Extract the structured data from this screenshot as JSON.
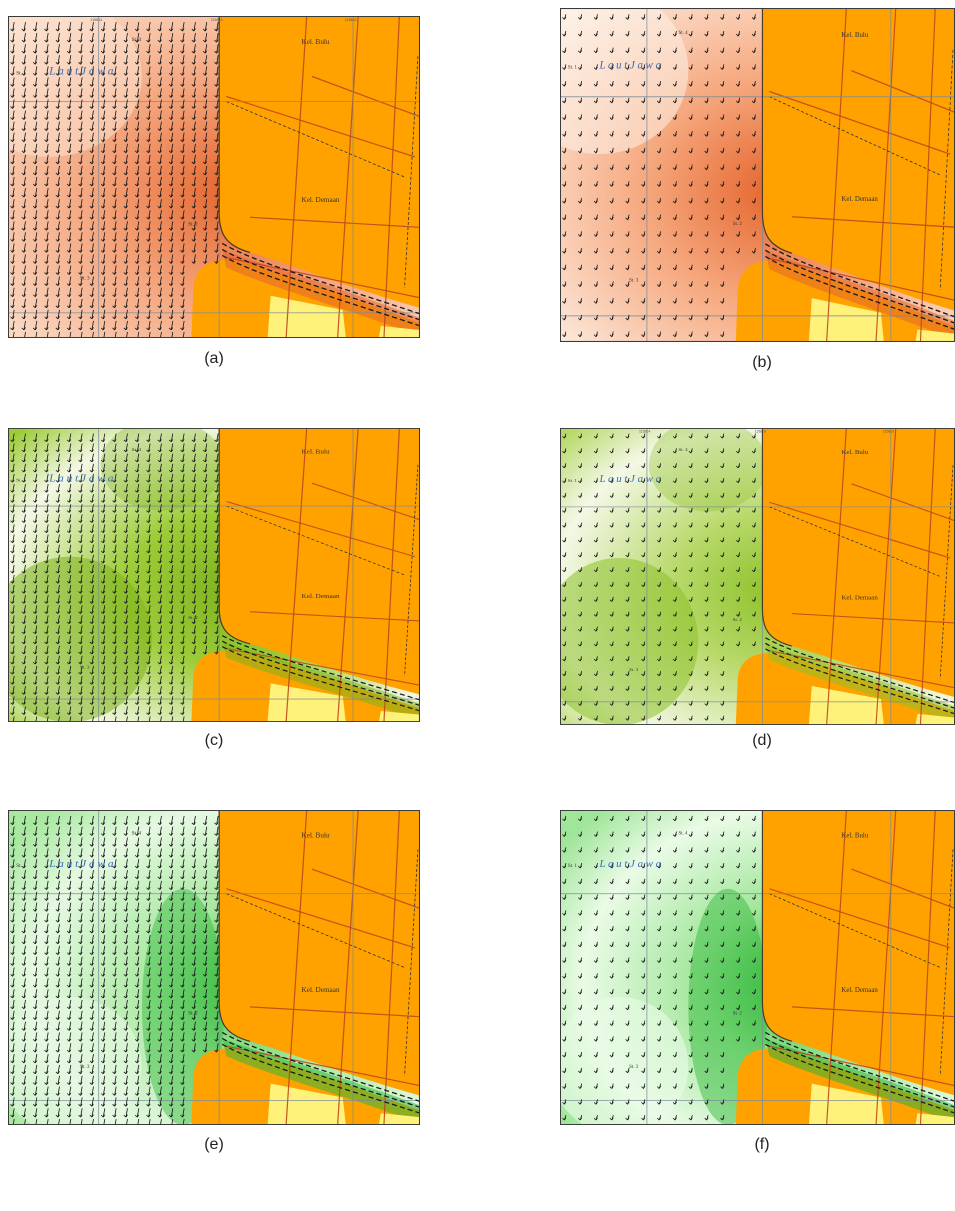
{
  "panels": [
    {
      "id": "a",
      "caption": "(a)",
      "scheme": "orange",
      "arrows": "dense",
      "coords": [
        "115814",
        "115816",
        "115818"
      ],
      "colors": {
        "base": "#f4a47c",
        "light": "#fbe2d0",
        "dark": "#e4642c"
      }
    },
    {
      "id": "b",
      "caption": "(b)",
      "scheme": "orange",
      "arrows": "sparse",
      "coords": [],
      "colors": {
        "base": "#f6a87e",
        "light": "#fdf0e6",
        "dark": "#e4642c"
      }
    },
    {
      "id": "c",
      "caption": "(c)",
      "scheme": "lime",
      "arrows": "dense",
      "coords": [],
      "colors": {
        "base": "#9ccc38",
        "light": "#f4f8e6",
        "dark": "#7db31e"
      }
    },
    {
      "id": "d",
      "caption": "(d)",
      "scheme": "lime",
      "arrows": "sparse",
      "coords": [
        "115814",
        "115816",
        "115818"
      ],
      "colors": {
        "base": "#b8d96a",
        "light": "#f4f8e6",
        "dark": "#8cc129"
      }
    },
    {
      "id": "e",
      "caption": "(e)",
      "scheme": "green",
      "arrows": "dense",
      "coords": [],
      "colors": {
        "base": "#a8e8a0",
        "light": "#e6f9e2",
        "dark": "#30b83a"
      }
    },
    {
      "id": "f",
      "caption": "(f)",
      "scheme": "green",
      "arrows": "sparse",
      "coords": [],
      "colors": {
        "base": "#a0e69a",
        "light": "#eafbe6",
        "dark": "#2cb536"
      }
    }
  ],
  "labels": {
    "sea": "L a u t   J a w a",
    "kel_bulu": "Kel. Bulu",
    "kel_demaan": "Kel. Demaan",
    "station_1": "St. 1",
    "station_2": "St. 2",
    "station_3": "St. 3",
    "station_4": "St. 4"
  },
  "map_colors": {
    "land": "#ffa200",
    "sand": "#fff27a",
    "road": "#c0481c",
    "grid": "#7a8a9a",
    "border": "#4a3a2a",
    "arrow": "#1a1a1a",
    "sea_text": "#3a6ab8"
  }
}
